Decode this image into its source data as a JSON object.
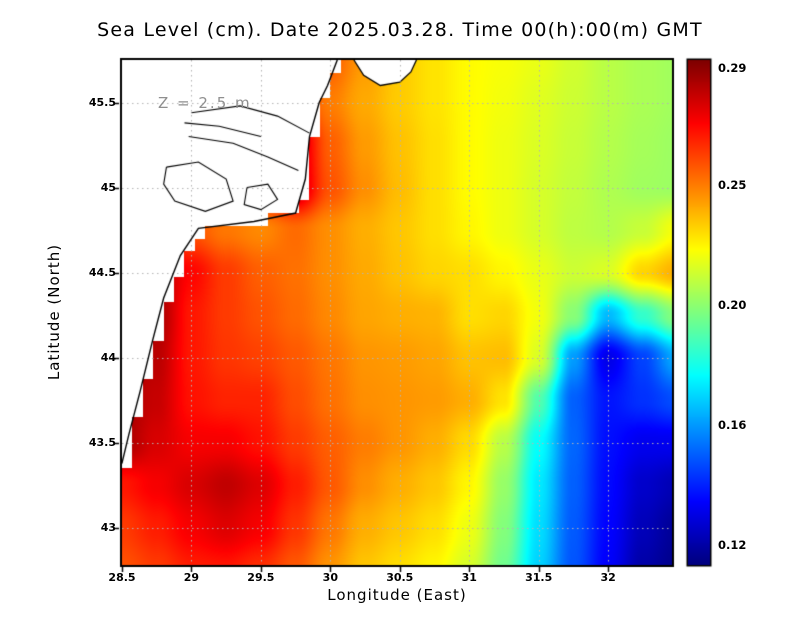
{
  "title": "Sea Level (cm). Date 2025.03.28. Time 00(h):00(m) GMT",
  "chart_data": {
    "type": "heatmap",
    "title": "Sea Level (cm). Date 2025.03.28. Time 00(h):00(m) GMT",
    "annotation": "Z = 2.5 m",
    "xlabel": "Longitude (East)",
    "ylabel": "Latitude (North)",
    "lon_range": [
      28.5,
      32.46
    ],
    "lat_range": [
      42.78,
      45.75
    ],
    "x_ticks": {
      "labels": [
        "28.5",
        "29",
        "29.5",
        "30",
        "30.5",
        "31",
        "31.5",
        "32"
      ],
      "values": [
        28.5,
        29,
        29.5,
        30,
        30.5,
        31,
        31.5,
        32
      ]
    },
    "y_ticks": {
      "labels": [
        "43",
        "43.5",
        "44",
        "44.5",
        "45",
        "45.5"
      ],
      "values": [
        43,
        43.5,
        44,
        44.5,
        45,
        45.5
      ]
    },
    "colorbar": {
      "labels": [
        "0.29",
        "0.25",
        "0.20",
        "0.16",
        "0.12"
      ],
      "values": [
        0.29,
        0.25,
        0.2,
        0.16,
        0.12
      ],
      "fractions": [
        0.016,
        0.248,
        0.485,
        0.723,
        0.96
      ]
    },
    "value_stops": [
      0.11,
      0.12,
      0.16,
      0.2,
      0.25,
      0.29,
      0.3
    ],
    "t_stops": [
      0.0,
      0.016,
      0.248,
      0.485,
      0.723,
      0.96,
      1.0
    ],
    "grid_lon": [
      28.5,
      28.75,
      29.0,
      29.25,
      29.5,
      29.75,
      30.0,
      30.25,
      30.5,
      30.75,
      31.0,
      31.25,
      31.5,
      31.75,
      32.0,
      32.25,
      32.5
    ],
    "grid_lat": [
      45.75,
      45.5,
      45.25,
      45.0,
      44.75,
      44.5,
      44.25,
      44.0,
      43.75,
      43.5,
      43.25,
      43.0,
      42.75
    ],
    "values": [
      [
        0.26,
        0.26,
        0.26,
        0.26,
        0.26,
        0.27,
        0.26,
        0.25,
        0.24,
        0.235,
        0.23,
        0.228,
        0.225,
        0.22,
        0.215,
        0.212,
        0.21
      ],
      [
        0.26,
        0.26,
        0.26,
        0.26,
        0.265,
        0.27,
        0.255,
        0.247,
        0.24,
        0.235,
        0.23,
        0.227,
        0.223,
        0.219,
        0.215,
        0.212,
        0.21
      ],
      [
        0.26,
        0.26,
        0.26,
        0.262,
        0.27,
        0.285,
        0.26,
        0.25,
        0.242,
        0.236,
        0.23,
        0.226,
        0.222,
        0.218,
        0.214,
        0.211,
        0.209
      ],
      [
        0.26,
        0.26,
        0.26,
        0.265,
        0.272,
        0.285,
        0.262,
        0.252,
        0.243,
        0.236,
        0.23,
        0.226,
        0.221,
        0.217,
        0.213,
        0.21,
        0.209
      ],
      [
        0.27,
        0.272,
        0.262,
        0.256,
        0.253,
        0.258,
        0.252,
        0.246,
        0.241,
        0.236,
        0.231,
        0.226,
        0.221,
        0.216,
        0.214,
        0.218,
        0.228
      ],
      [
        0.29,
        0.29,
        0.275,
        0.266,
        0.26,
        0.257,
        0.252,
        0.247,
        0.242,
        0.238,
        0.236,
        0.231,
        0.225,
        0.219,
        0.222,
        0.238,
        0.246
      ],
      [
        0.29,
        0.29,
        0.272,
        0.266,
        0.262,
        0.258,
        0.253,
        0.248,
        0.246,
        0.245,
        0.236,
        0.238,
        0.227,
        0.205,
        0.17,
        0.19,
        0.205
      ],
      [
        0.29,
        0.287,
        0.272,
        0.267,
        0.265,
        0.261,
        0.256,
        0.251,
        0.25,
        0.248,
        0.242,
        0.243,
        0.222,
        0.165,
        0.135,
        0.15,
        0.168
      ],
      [
        0.29,
        0.285,
        0.273,
        0.27,
        0.27,
        0.263,
        0.257,
        0.252,
        0.251,
        0.25,
        0.246,
        0.235,
        0.195,
        0.155,
        0.142,
        0.147,
        0.152
      ],
      [
        0.29,
        0.282,
        0.277,
        0.277,
        0.273,
        0.266,
        0.26,
        0.255,
        0.251,
        0.246,
        0.237,
        0.215,
        0.182,
        0.156,
        0.141,
        0.136,
        0.136
      ],
      [
        0.272,
        0.277,
        0.282,
        0.286,
        0.281,
        0.271,
        0.261,
        0.252,
        0.246,
        0.241,
        0.231,
        0.208,
        0.178,
        0.155,
        0.14,
        0.13,
        0.126
      ],
      [
        0.266,
        0.271,
        0.277,
        0.281,
        0.277,
        0.267,
        0.256,
        0.246,
        0.241,
        0.236,
        0.226,
        0.204,
        0.176,
        0.154,
        0.139,
        0.127,
        0.121
      ],
      [
        0.262,
        0.266,
        0.271,
        0.272,
        0.268,
        0.261,
        0.251,
        0.241,
        0.236,
        0.231,
        0.221,
        0.2,
        0.174,
        0.153,
        0.138,
        0.124,
        0.119
      ]
    ],
    "land_quantize_deg": 0.075,
    "coastline": [
      [
        45.75,
        30.05
      ],
      [
        45.6,
        29.98
      ],
      [
        45.5,
        29.92
      ],
      [
        45.3,
        29.85
      ],
      [
        45.05,
        29.82
      ],
      [
        44.85,
        29.75
      ],
      [
        44.8,
        29.45
      ],
      [
        44.76,
        29.05
      ],
      [
        44.6,
        28.92
      ],
      [
        44.35,
        28.8
      ],
      [
        44.1,
        28.72
      ],
      [
        43.8,
        28.63
      ],
      [
        43.55,
        28.55
      ],
      [
        43.38,
        28.5
      ],
      [
        43.3,
        28.42
      ]
    ],
    "land_wedge": [
      [
        45.75,
        30.17
      ],
      [
        45.66,
        30.24
      ],
      [
        45.6,
        30.36
      ],
      [
        45.62,
        30.5
      ],
      [
        45.68,
        30.58
      ],
      [
        45.75,
        30.62
      ]
    ],
    "inner_lines": [
      [
        [
          45.44,
          29.0
        ],
        [
          45.48,
          29.35
        ],
        [
          45.42,
          29.62
        ],
        [
          45.32,
          29.85
        ]
      ],
      [
        [
          45.38,
          28.95
        ],
        [
          45.36,
          29.2
        ],
        [
          45.3,
          29.5
        ]
      ],
      [
        [
          45.3,
          28.98
        ],
        [
          45.26,
          29.3
        ],
        [
          45.18,
          29.55
        ],
        [
          45.1,
          29.77
        ]
      ],
      [
        [
          45.12,
          28.82
        ],
        [
          45.15,
          29.05
        ],
        [
          45.05,
          29.25
        ],
        [
          44.92,
          29.3
        ],
        [
          44.86,
          29.1
        ],
        [
          44.92,
          28.88
        ],
        [
          45.02,
          28.8
        ],
        [
          45.12,
          28.82
        ]
      ],
      [
        [
          45.0,
          29.4
        ],
        [
          45.02,
          29.55
        ],
        [
          44.93,
          29.62
        ],
        [
          44.87,
          29.5
        ],
        [
          44.9,
          29.38
        ],
        [
          45.0,
          29.4
        ]
      ]
    ],
    "colors": {
      "grid": "#b4b4b4",
      "coast": "#000000",
      "land": "#ffffff",
      "annotation": "#8f8f8f",
      "frame": "#000000"
    }
  }
}
